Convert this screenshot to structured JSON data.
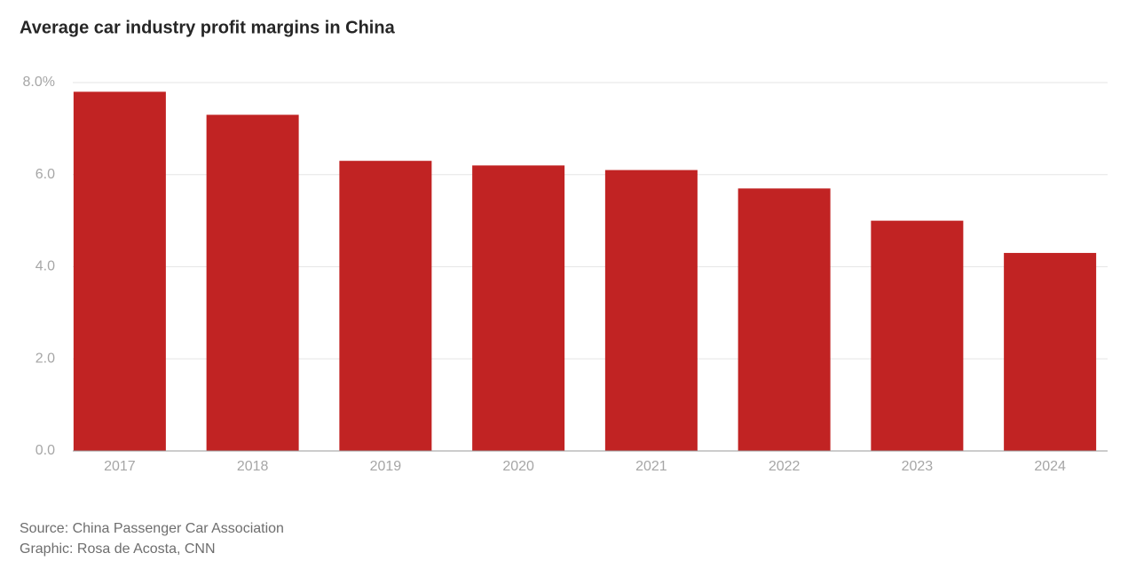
{
  "chart_data": {
    "type": "bar",
    "title": "Average car industry profit margins in China",
    "categories": [
      "2017",
      "2018",
      "2019",
      "2020",
      "2021",
      "2022",
      "2023",
      "2024"
    ],
    "values": [
      7.8,
      7.3,
      6.3,
      6.2,
      6.1,
      5.7,
      5.0,
      4.3
    ],
    "color": "#c12323",
    "ylim": [
      0,
      8
    ],
    "yticks": [
      {
        "value": 0,
        "label": "0.0"
      },
      {
        "value": 2,
        "label": "2.0"
      },
      {
        "value": 4,
        "label": "4.0"
      },
      {
        "value": 6,
        "label": "6.0"
      },
      {
        "value": 8,
        "label": "8.0%"
      }
    ],
    "grid": true,
    "source": "Source: China Passenger Car Association",
    "credit": "Graphic: Rosa de Acosta, CNN"
  }
}
